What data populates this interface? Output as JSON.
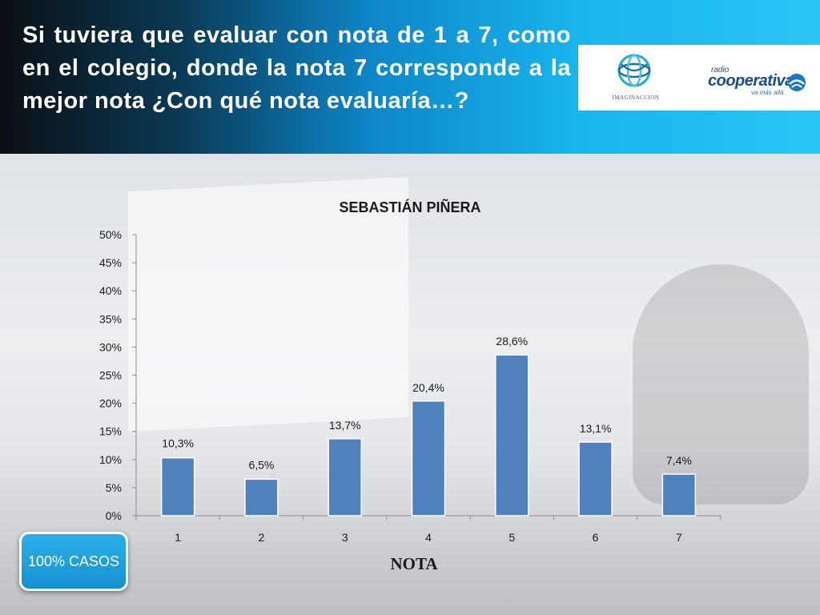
{
  "header": {
    "title": "Si tuviera que evaluar con nota de 1 a 7, como en el colegio, donde la nota 7 corresponde a la mejor nota ¿Con qué nota evaluaría…?",
    "logo_left_text": "IMAGINACCION",
    "logo_right_radio": "radio",
    "logo_right_name": "cooperativa",
    "logo_right_tagline": "va más allá"
  },
  "badge": {
    "label": "100% CASOS"
  },
  "colors": {
    "bar": "#4f81bd",
    "header_accent": "#18b4ec",
    "badge": "#1a9fdc"
  },
  "chart_data": {
    "type": "bar",
    "title": "SEBASTIÁN PIÑERA",
    "xlabel": "NOTA",
    "ylabel": "",
    "categories": [
      "1",
      "2",
      "3",
      "4",
      "5",
      "6",
      "7"
    ],
    "values": [
      10.3,
      6.5,
      13.7,
      20.4,
      28.6,
      13.1,
      7.4
    ],
    "value_labels": [
      "10,3%",
      "6,5%",
      "13,7%",
      "20,4%",
      "28,6%",
      "13,1%",
      "7,4%"
    ],
    "y_ticks": [
      "0%",
      "5%",
      "10%",
      "15%",
      "20%",
      "25%",
      "30%",
      "35%",
      "40%",
      "45%",
      "50%"
    ],
    "ylim": [
      0,
      50
    ],
    "grid": false,
    "legend": "none"
  }
}
